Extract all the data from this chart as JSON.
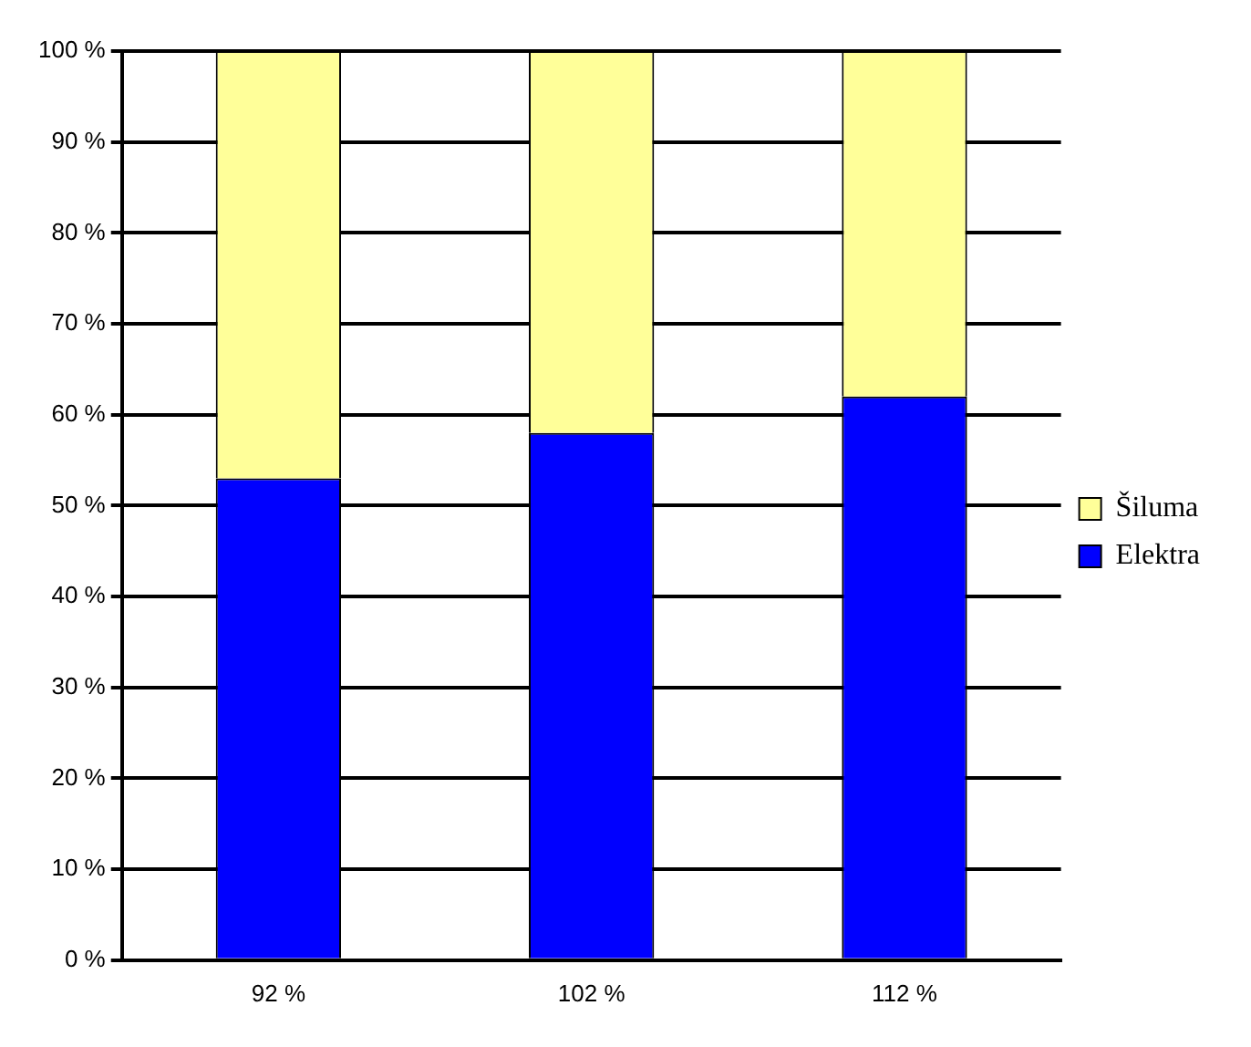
{
  "chart_data": {
    "type": "bar",
    "stacked": true,
    "categories": [
      "92 %",
      "102 %",
      "112 %"
    ],
    "series": [
      {
        "name": "Elektra",
        "color": "#0000ff",
        "values": [
          53,
          58,
          62
        ]
      },
      {
        "name": "Šiluma",
        "color": "#ffff99",
        "values": [
          47,
          42,
          38
        ]
      }
    ],
    "ylim": [
      0,
      100
    ],
    "yticks": [
      {
        "value": 0,
        "label": "0 %"
      },
      {
        "value": 10,
        "label": "10 %"
      },
      {
        "value": 20,
        "label": "20 %"
      },
      {
        "value": 30,
        "label": "30 %"
      },
      {
        "value": 40,
        "label": "40 %"
      },
      {
        "value": 50,
        "label": "50 %"
      },
      {
        "value": 60,
        "label": "60 %"
      },
      {
        "value": 70,
        "label": "70 %"
      },
      {
        "value": 80,
        "label": "80 %"
      },
      {
        "value": 90,
        "label": "90 %"
      },
      {
        "value": 100,
        "label": "100 %"
      }
    ],
    "grid": "y",
    "legend": "right"
  }
}
